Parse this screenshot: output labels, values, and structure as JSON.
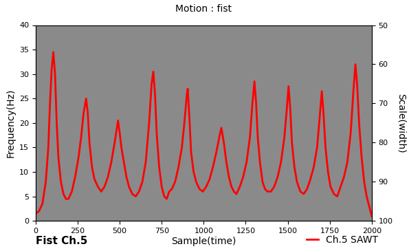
{
  "chart_data": {
    "type": "line",
    "title": "Motion : fist",
    "x_label": "Sample(time)",
    "y_label": "Frequency(Hz)",
    "y2_label": "Scale(width)",
    "annotations": [
      "Fist Ch.5"
    ],
    "xlim": [
      0,
      2000
    ],
    "xticks": [
      0,
      250,
      500,
      750,
      1000,
      1250,
      1500,
      1750,
      2000
    ],
    "ylim": [
      0,
      40
    ],
    "yticks": [
      0,
      5,
      10,
      15,
      20,
      25,
      30,
      35,
      40
    ],
    "y2lim": [
      100,
      50
    ],
    "y2ticks": [
      50,
      60,
      70,
      80,
      90,
      100
    ],
    "grid": false,
    "legend": "lower right",
    "series": [
      {
        "name": "Ch.5 SAWT",
        "color": "#ff0000",
        "line_style": "solid",
        "x": [
          0,
          20,
          40,
          60,
          75,
          85,
          95,
          105,
          115,
          125,
          135,
          150,
          165,
          180,
          195,
          215,
          235,
          255,
          270,
          285,
          300,
          310,
          320,
          335,
          350,
          370,
          390,
          410,
          430,
          450,
          470,
          490,
          500,
          510,
          525,
          540,
          555,
          575,
          595,
          615,
          635,
          655,
          675,
          690,
          700,
          710,
          720,
          735,
          750,
          765,
          780,
          795,
          810,
          830,
          850,
          870,
          885,
          900,
          905,
          915,
          925,
          940,
          955,
          975,
          995,
          1015,
          1035,
          1055,
          1075,
          1095,
          1105,
          1120,
          1135,
          1150,
          1165,
          1180,
          1195,
          1215,
          1235,
          1255,
          1275,
          1290,
          1302,
          1312,
          1322,
          1335,
          1350,
          1365,
          1380,
          1400,
          1420,
          1440,
          1460,
          1480,
          1495,
          1505,
          1515,
          1525,
          1540,
          1555,
          1575,
          1595,
          1615,
          1635,
          1655,
          1675,
          1690,
          1703,
          1713,
          1725,
          1740,
          1755,
          1775,
          1795,
          1815,
          1835,
          1855,
          1875,
          1890,
          1903,
          1913,
          1925,
          1940,
          1955,
          1970,
          1985,
          2000
        ],
        "values": [
          1.5,
          2,
          3.5,
          8,
          15,
          24,
          31,
          34.5,
          30,
          20,
          13,
          8,
          5.5,
          4.5,
          4.5,
          6,
          9,
          13,
          17,
          22,
          25,
          22,
          16,
          11,
          8.5,
          7,
          6,
          7,
          9,
          12,
          16,
          20.5,
          18,
          15,
          12,
          9,
          7,
          5.5,
          5,
          6,
          8,
          12,
          20,
          28,
          30.5,
          26,
          18,
          11,
          7,
          5,
          4.5,
          6,
          6.5,
          8,
          11,
          15,
          20,
          26,
          27,
          21,
          14,
          10,
          8,
          6.5,
          6,
          7,
          8.5,
          11,
          14,
          17.5,
          19,
          16,
          12,
          9,
          7,
          6,
          5.5,
          7,
          9,
          12,
          17,
          24,
          28.5,
          24,
          17,
          12,
          8,
          6.5,
          6,
          6,
          7,
          9,
          12,
          17,
          23,
          27.5,
          23,
          16,
          11,
          8,
          6,
          5.5,
          6.5,
          8.5,
          11,
          15,
          21,
          26.5,
          22,
          15,
          10,
          7,
          5.5,
          5,
          7,
          9,
          12,
          18,
          26,
          32,
          28,
          20,
          13,
          8,
          5,
          3,
          1
        ]
      }
    ]
  }
}
